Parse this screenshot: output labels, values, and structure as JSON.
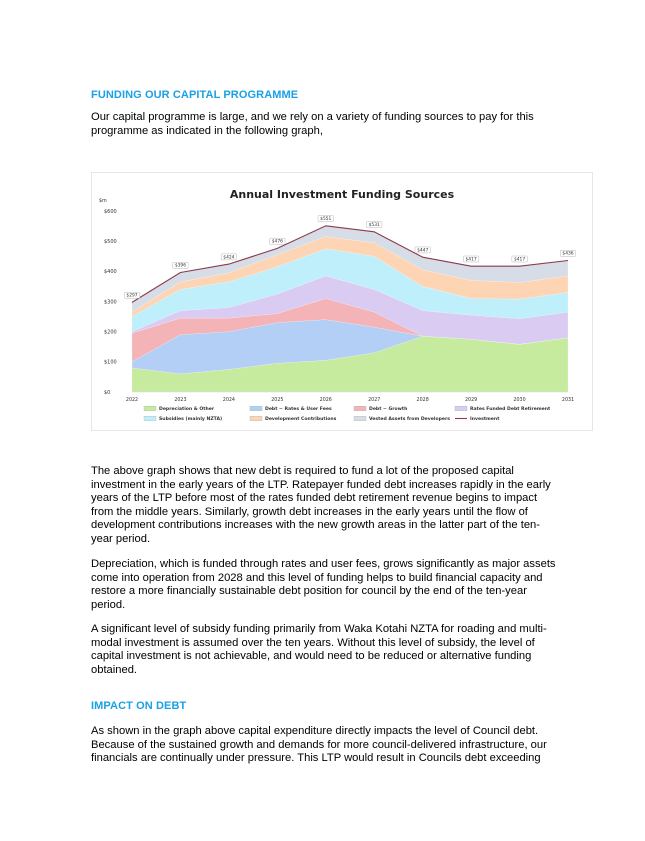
{
  "section1": {
    "heading": "FUNDING OUR CAPITAL PROGRAMME",
    "intro": "Our capital programme is large, and we rely on a variety of funding sources to pay for this programme as indicated in the following graph,"
  },
  "paragraphs": [
    "The above graph shows that new debt is required to fund a lot of the proposed capital investment in the early years of the LTP.  Ratepayer funded debt increases rapidly in the early years of the LTP before most of the rates funded debt retirement revenue begins to impact from the middle years.  Similarly, growth debt increases in the early years until the flow of development contributions increases with the new growth areas in the latter part of the ten- year period.",
    "Depreciation, which is funded through rates and user fees, grows significantly as major assets come into operation from 2028 and this level of funding helps to build financial capacity and restore a more financially sustainable debt position for council by the end of the ten-year period.",
    "A significant level of subsidy funding primarily from Waka Kotahi NZTA for roading and multi-modal investment is assumed over the ten years.  Without this level of subsidy, the level of capital investment is not achievable, and would need to be reduced or alternative funding obtained."
  ],
  "section2": {
    "heading": "IMPACT ON DEBT",
    "intro": "As shown in the graph above capital expenditure directly impacts the level of Council debt. Because of the sustained growth and demands for more council-delivered infrastructure, our financials are continually under pressure.  This LTP would result in Councils debt exceeding"
  },
  "chart_data": {
    "type": "area",
    "title": "Annual Investment Funding Sources",
    "ylabel": "$m",
    "xlabel": "",
    "x": [
      "2022",
      "2023",
      "2024",
      "2025",
      "2026",
      "2027",
      "2028",
      "2029",
      "2030",
      "2031"
    ],
    "ylim": [
      0,
      600
    ],
    "yticks": [
      "$0",
      "$100",
      "$200",
      "$300",
      "$400",
      "$500",
      "$600"
    ],
    "stacked": true,
    "legend_position": "bottom",
    "grid": false,
    "series": [
      {
        "name": "Depreciation & Other",
        "color": "#c6eb9f",
        "values": [
          80,
          60,
          75,
          95,
          105,
          130,
          185,
          175,
          158,
          180
        ]
      },
      {
        "name": "Debt ~ Rates & User Fees",
        "color": "#b4cff5",
        "values": [
          20,
          130,
          125,
          135,
          135,
          85,
          0,
          0,
          0,
          0
        ]
      },
      {
        "name": "Debt ~ Growth",
        "color": "#f3b3b7",
        "values": [
          95,
          55,
          45,
          30,
          70,
          50,
          0,
          0,
          0,
          0
        ]
      },
      {
        "name": "Rates Funded Debt Retirement",
        "color": "#d9cbf2",
        "values": [
          5,
          25,
          35,
          65,
          75,
          75,
          85,
          80,
          85,
          85
        ]
      },
      {
        "name": "Subsidies (mainly NZTA)",
        "color": "#bfeffa",
        "values": [
          50,
          70,
          85,
          90,
          90,
          110,
          80,
          55,
          65,
          65
        ]
      },
      {
        "name": "Development Contributions",
        "color": "#fdd5b4",
        "values": [
          15,
          25,
          30,
          40,
          40,
          45,
          55,
          60,
          55,
          55
        ]
      },
      {
        "name": "Vested Assets from Developers",
        "color": "#d7dde6",
        "values": [
          32,
          31,
          29,
          21,
          36,
          36,
          42,
          47,
          54,
          51
        ]
      }
    ],
    "line": {
      "name": "Investment",
      "color": "#8b3a4a",
      "values": [
        297,
        396,
        424,
        476,
        551,
        531,
        447,
        417,
        417,
        436
      ]
    },
    "data_labels": [
      "$297",
      "$396",
      "$424",
      "$476",
      "$551",
      "$531",
      "$447",
      "$417",
      "$417",
      "$436"
    ]
  }
}
